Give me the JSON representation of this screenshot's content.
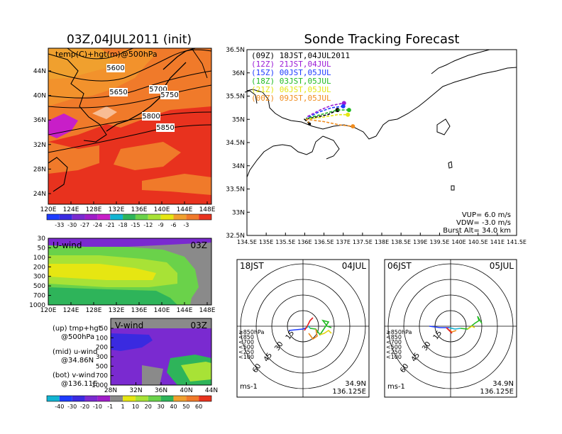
{
  "titles": {
    "left": "03Z,04JUL2011 (init)",
    "right": "Sonde Tracking Forecast"
  },
  "colors": {
    "z500_warm": "#f07a2a",
    "z500_hot": "#e8321e",
    "z500_mild": "#f0a02e",
    "wind_green": "#6ad24a",
    "wind_lime": "#a8e236",
    "wind_purple": "#7a2ad0",
    "wind_gray": "#8a8a8a"
  },
  "top_left_map": {
    "label": "temp(C)+hgt(m)@500hPa",
    "contours": [
      "5600",
      "5650",
      "5700",
      "5750",
      "5800",
      "5850"
    ],
    "y_ticks": [
      "44N",
      "40N",
      "36N",
      "32N",
      "28N",
      "24N"
    ],
    "x_ticks": [
      "120E",
      "124E",
      "128E",
      "132E",
      "136E",
      "140E",
      "144E",
      "148E"
    ],
    "colorbar_ticks": [
      "-33",
      "-30",
      "-27",
      "-24",
      "-21",
      "-18",
      "-15",
      "-12",
      "-9",
      "-6",
      "-3"
    ]
  },
  "u_wind": {
    "label": "U-wind",
    "time": "03Z",
    "y_ticks": [
      "30",
      "50",
      "100",
      "200",
      "300",
      "500",
      "700",
      "1000"
    ],
    "x_ticks": [
      "120E",
      "124E",
      "128E",
      "132E",
      "136E",
      "140E",
      "144E",
      "148E"
    ]
  },
  "v_wind": {
    "label": "V-wind",
    "time": "03Z",
    "y_ticks": [
      "50",
      "100",
      "200",
      "300",
      "500",
      "700",
      "1000"
    ],
    "x_ticks": [
      "28N",
      "32N",
      "36N",
      "40N",
      "44N"
    ]
  },
  "notes": {
    "up1": "(up) tmp+hgt",
    "up2": "@500hPa",
    "mid1": "(mid) u-wind",
    "mid2": "@34.86N",
    "bot1": "(bot) v-wind",
    "bot2": "@136.11E"
  },
  "wind_colorbar_ticks": [
    "-40",
    "-30",
    "-20",
    "-10",
    "-1",
    "1",
    "10",
    "20",
    "30",
    "40",
    "50",
    "60"
  ],
  "track_map": {
    "legend": [
      {
        "text": "(09Z)  18JST,04JUL2011",
        "color": "#000000"
      },
      {
        "text": "(12Z)  21JST,04JUL",
        "color": "#9b1bd6"
      },
      {
        "text": "(15Z)  00JST,05JUL",
        "color": "#1e3cff"
      },
      {
        "text": "(18Z)  03JST,05JUL",
        "color": "#22bb22"
      },
      {
        "text": "(21Z)  06JST,05JUL",
        "color": "#e6e612"
      },
      {
        "text": "(00Z)  09JST,05JUL",
        "color": "#f08c1e"
      }
    ],
    "y_ticks": [
      "36.5N",
      "36N",
      "35.5N",
      "35N",
      "34.5N",
      "34N",
      "33.5N",
      "33N",
      "32.5N"
    ],
    "x_ticks": [
      "134.5E",
      "135E",
      "135.5E",
      "136E",
      "136.5E",
      "137E",
      "137.5E",
      "138E",
      "138.5E",
      "139E",
      "139.5E",
      "140E",
      "140.5E",
      "141E",
      "141.5E"
    ],
    "params": [
      "VUP=  6.0 m/s",
      "VDW= -3.0 m/s",
      "Burst Alt= 34.0 km"
    ]
  },
  "hodographs": [
    {
      "time": "18JST",
      "date": "04JUL",
      "rings": [
        "15",
        "30",
        "45",
        "60"
      ],
      "lat": "34.9N",
      "lon": "136.125E",
      "unit": "ms-1",
      "levels": [
        {
          "text": "≥850hPa",
          "color": "#e61e1e"
        },
        {
          "text": "<850",
          "color": "#f08c1e"
        },
        {
          "text": "<700",
          "color": "#e6d212"
        },
        {
          "text": "<500",
          "color": "#22bb22"
        },
        {
          "text": "<250",
          "color": "#12b4d2"
        },
        {
          "text": "<100",
          "color": "#1e3cff"
        }
      ]
    },
    {
      "time": "06JST",
      "date": "05JUL",
      "rings": [
        "15",
        "30",
        "45",
        "60"
      ],
      "lat": "34.9N",
      "lon": "136.125E",
      "unit": "ms-1",
      "levels": [
        {
          "text": "≥850hPa",
          "color": "#e61e1e"
        },
        {
          "text": "<850",
          "color": "#f08c1e"
        },
        {
          "text": "<700",
          "color": "#e6d212"
        },
        {
          "text": "<500",
          "color": "#22bb22"
        },
        {
          "text": "<250",
          "color": "#12b4d2"
        },
        {
          "text": "<100",
          "color": "#1e3cff"
        }
      ]
    }
  ],
  "chart_data": {
    "type": "line",
    "title": "Sonde Tracking Forecast",
    "launch_point": {
      "lon": 136.125,
      "lat": 34.9
    },
    "xlim": [
      134.5,
      141.5
    ],
    "ylim": [
      32.5,
      36.5
    ],
    "series": [
      {
        "name": "(09Z)  18JST,04JUL2011",
        "color": "#000000",
        "x": [
          136.0,
          136.3,
          136.6,
          136.85
        ],
        "y": [
          35.0,
          35.05,
          35.1,
          35.2
        ]
      },
      {
        "name": "(12Z)  21JST,04JUL",
        "color": "#9b1bd6",
        "x": [
          136.05,
          136.4,
          136.7,
          137.02
        ],
        "y": [
          35.05,
          35.2,
          35.3,
          35.35
        ]
      },
      {
        "name": "(15Z)  00JST,05JUL",
        "color": "#1e3cff",
        "x": [
          136.05,
          136.35,
          136.7,
          137.0
        ],
        "y": [
          35.02,
          35.15,
          35.25,
          35.28
        ]
      },
      {
        "name": "(18Z)  03JST,05JUL",
        "color": "#22bb22",
        "x": [
          136.05,
          136.5,
          136.85,
          137.15
        ],
        "y": [
          35.02,
          35.12,
          35.2,
          35.2
        ]
      },
      {
        "name": "(21Z)  06JST,05JUL",
        "color": "#e6e612",
        "x": [
          136.05,
          136.5,
          136.85,
          137.12
        ],
        "y": [
          35.0,
          35.05,
          35.1,
          35.1
        ]
      },
      {
        "name": "(00Z)  09JST,05JUL",
        "color": "#f08c1e",
        "x": [
          136.05,
          136.5,
          136.9,
          137.25
        ],
        "y": [
          35.0,
          34.95,
          34.88,
          34.85
        ]
      }
    ]
  }
}
